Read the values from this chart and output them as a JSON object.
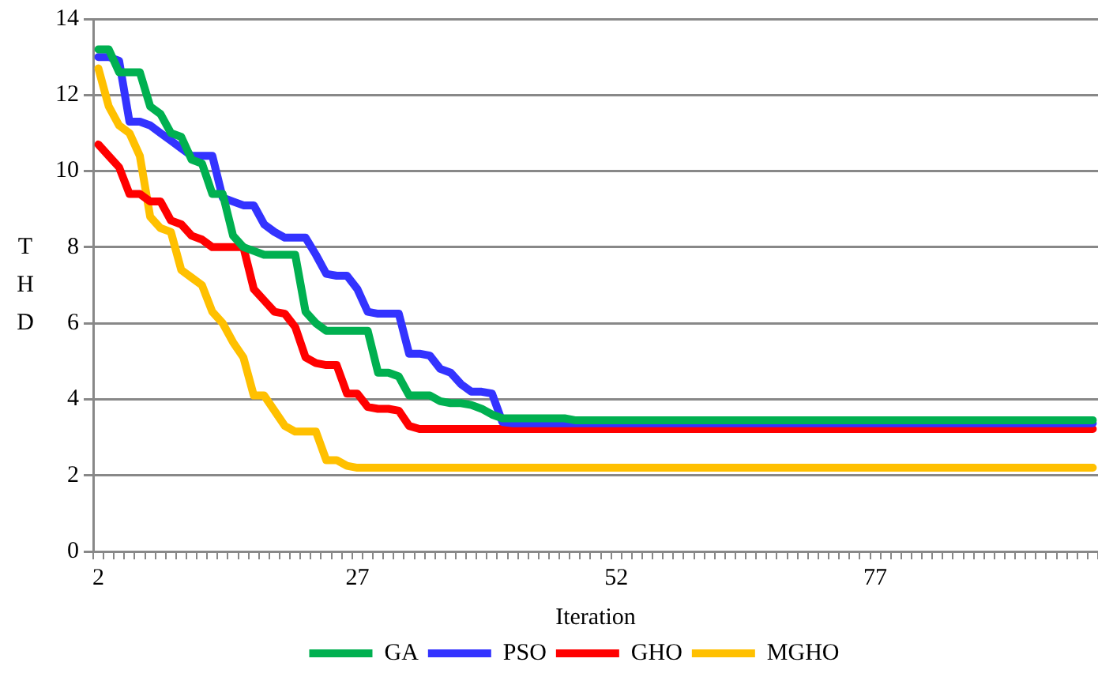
{
  "chart_data": {
    "type": "line",
    "ylabel": "THD",
    "xlabel": "Iteration",
    "categories": [
      "2",
      null,
      null,
      null,
      null,
      null,
      null,
      null,
      null,
      null,
      null,
      null,
      null,
      null,
      null,
      null,
      null,
      null,
      null,
      null,
      null,
      null,
      null,
      null,
      null,
      "27",
      null,
      null,
      null,
      null,
      null,
      null,
      null,
      null,
      null,
      null,
      null,
      null,
      null,
      null,
      null,
      null,
      null,
      null,
      null,
      null,
      null,
      null,
      null,
      null,
      "52",
      null,
      null,
      null,
      null,
      null,
      null,
      null,
      null,
      null,
      null,
      null,
      null,
      null,
      null,
      null,
      null,
      null,
      null,
      null,
      null,
      null,
      null,
      null,
      null,
      "77",
      null,
      null,
      null,
      null,
      null,
      null,
      null,
      null,
      null,
      null,
      null,
      null,
      null,
      null,
      null,
      null,
      null,
      null,
      null,
      null,
      null
    ],
    "series": [
      {
        "name": "GA",
        "color": "#00b050",
        "values": [
          13.2,
          13.2,
          12.6,
          12.6,
          12.6,
          11.7,
          11.5,
          11.0,
          10.9,
          10.3,
          10.2,
          9.4,
          9.4,
          8.3,
          8.0,
          7.9,
          7.8,
          7.8,
          7.8,
          7.8,
          6.3,
          6.0,
          5.8,
          5.8,
          5.8,
          5.8,
          5.8,
          4.7,
          4.7,
          4.6,
          4.1,
          4.1,
          4.1,
          3.95,
          3.9,
          3.9,
          3.85,
          3.75,
          3.6,
          3.5,
          3.5,
          3.5,
          3.5,
          3.5,
          3.5,
          3.5,
          3.45,
          3.45,
          3.45,
          3.45,
          3.45,
          3.45,
          3.45,
          3.45,
          3.45,
          3.45,
          3.45,
          3.45,
          3.45,
          3.45,
          3.45,
          3.45,
          3.45,
          3.45,
          3.45,
          3.45,
          3.45,
          3.45,
          3.45,
          3.45,
          3.45,
          3.45,
          3.45,
          3.45,
          3.45,
          3.45,
          3.45,
          3.45,
          3.45,
          3.45,
          3.45,
          3.45,
          3.45,
          3.45,
          3.45,
          3.45,
          3.45,
          3.45,
          3.45,
          3.45,
          3.45,
          3.45,
          3.45,
          3.45,
          3.45,
          3.45,
          3.45
        ]
      },
      {
        "name": "PSO",
        "color": "#3333ff",
        "values": [
          13.0,
          13.0,
          12.9,
          11.3,
          11.3,
          11.2,
          11.0,
          10.8,
          10.6,
          10.4,
          10.4,
          10.4,
          9.3,
          9.2,
          9.1,
          9.1,
          8.6,
          8.4,
          8.25,
          8.25,
          8.25,
          7.8,
          7.3,
          7.25,
          7.25,
          6.9,
          6.3,
          6.25,
          6.25,
          6.25,
          5.2,
          5.2,
          5.15,
          4.8,
          4.7,
          4.4,
          4.2,
          4.2,
          4.15,
          3.4,
          3.37,
          3.37,
          3.37,
          3.37,
          3.37,
          3.37,
          3.37,
          3.37,
          3.37,
          3.37,
          3.37,
          3.37,
          3.37,
          3.37,
          3.37,
          3.37,
          3.37,
          3.37,
          3.37,
          3.37,
          3.37,
          3.37,
          3.37,
          3.37,
          3.37,
          3.37,
          3.37,
          3.37,
          3.37,
          3.37,
          3.37,
          3.37,
          3.37,
          3.37,
          3.37,
          3.37,
          3.37,
          3.37,
          3.37,
          3.37,
          3.37,
          3.37,
          3.37,
          3.37,
          3.37,
          3.37,
          3.37,
          3.37,
          3.37,
          3.37,
          3.37,
          3.37,
          3.37,
          3.37,
          3.37,
          3.37,
          3.37
        ]
      },
      {
        "name": "GHO",
        "color": "#ff0000",
        "values": [
          10.7,
          10.4,
          10.1,
          9.4,
          9.4,
          9.2,
          9.2,
          8.7,
          8.6,
          8.3,
          8.2,
          8.0,
          8.0,
          8.0,
          8.0,
          6.9,
          6.6,
          6.3,
          6.25,
          5.9,
          5.1,
          4.95,
          4.9,
          4.9,
          4.15,
          4.15,
          3.8,
          3.75,
          3.75,
          3.7,
          3.3,
          3.22,
          3.22,
          3.22,
          3.22,
          3.22,
          3.22,
          3.22,
          3.22,
          3.22,
          3.22,
          3.22,
          3.22,
          3.22,
          3.22,
          3.22,
          3.22,
          3.22,
          3.22,
          3.22,
          3.22,
          3.22,
          3.22,
          3.22,
          3.22,
          3.22,
          3.22,
          3.22,
          3.22,
          3.22,
          3.22,
          3.22,
          3.22,
          3.22,
          3.22,
          3.22,
          3.22,
          3.22,
          3.22,
          3.22,
          3.22,
          3.22,
          3.22,
          3.22,
          3.22,
          3.22,
          3.22,
          3.22,
          3.22,
          3.22,
          3.22,
          3.22,
          3.22,
          3.22,
          3.22,
          3.22,
          3.22,
          3.22,
          3.22,
          3.22,
          3.22,
          3.22,
          3.22,
          3.22,
          3.22,
          3.22,
          3.22
        ]
      },
      {
        "name": "MGHO",
        "color": "#ffc000",
        "values": [
          12.7,
          11.7,
          11.2,
          11.0,
          10.4,
          8.8,
          8.5,
          8.4,
          7.4,
          7.2,
          7.0,
          6.3,
          6.0,
          5.5,
          5.1,
          4.1,
          4.1,
          3.7,
          3.3,
          3.15,
          3.15,
          3.15,
          2.4,
          2.4,
          2.25,
          2.2,
          2.2,
          2.2,
          2.2,
          2.2,
          2.2,
          2.2,
          2.2,
          2.2,
          2.2,
          2.2,
          2.2,
          2.2,
          2.2,
          2.2,
          2.2,
          2.2,
          2.2,
          2.2,
          2.2,
          2.2,
          2.2,
          2.2,
          2.2,
          2.2,
          2.2,
          2.2,
          2.2,
          2.2,
          2.2,
          2.2,
          2.2,
          2.2,
          2.2,
          2.2,
          2.2,
          2.2,
          2.2,
          2.2,
          2.2,
          2.2,
          2.2,
          2.2,
          2.2,
          2.2,
          2.2,
          2.2,
          2.2,
          2.2,
          2.2,
          2.2,
          2.2,
          2.2,
          2.2,
          2.2,
          2.2,
          2.2,
          2.2,
          2.2,
          2.2,
          2.2,
          2.2,
          2.2,
          2.2,
          2.2,
          2.2,
          2.2,
          2.2,
          2.2,
          2.2,
          2.2,
          2.2
        ]
      }
    ],
    "ylim": [
      0,
      14
    ],
    "yticks": [
      0,
      2,
      4,
      6,
      8,
      10,
      12,
      14
    ],
    "grid": "y",
    "legend": "bottom",
    "marker": "none",
    "line_style": "solid"
  }
}
